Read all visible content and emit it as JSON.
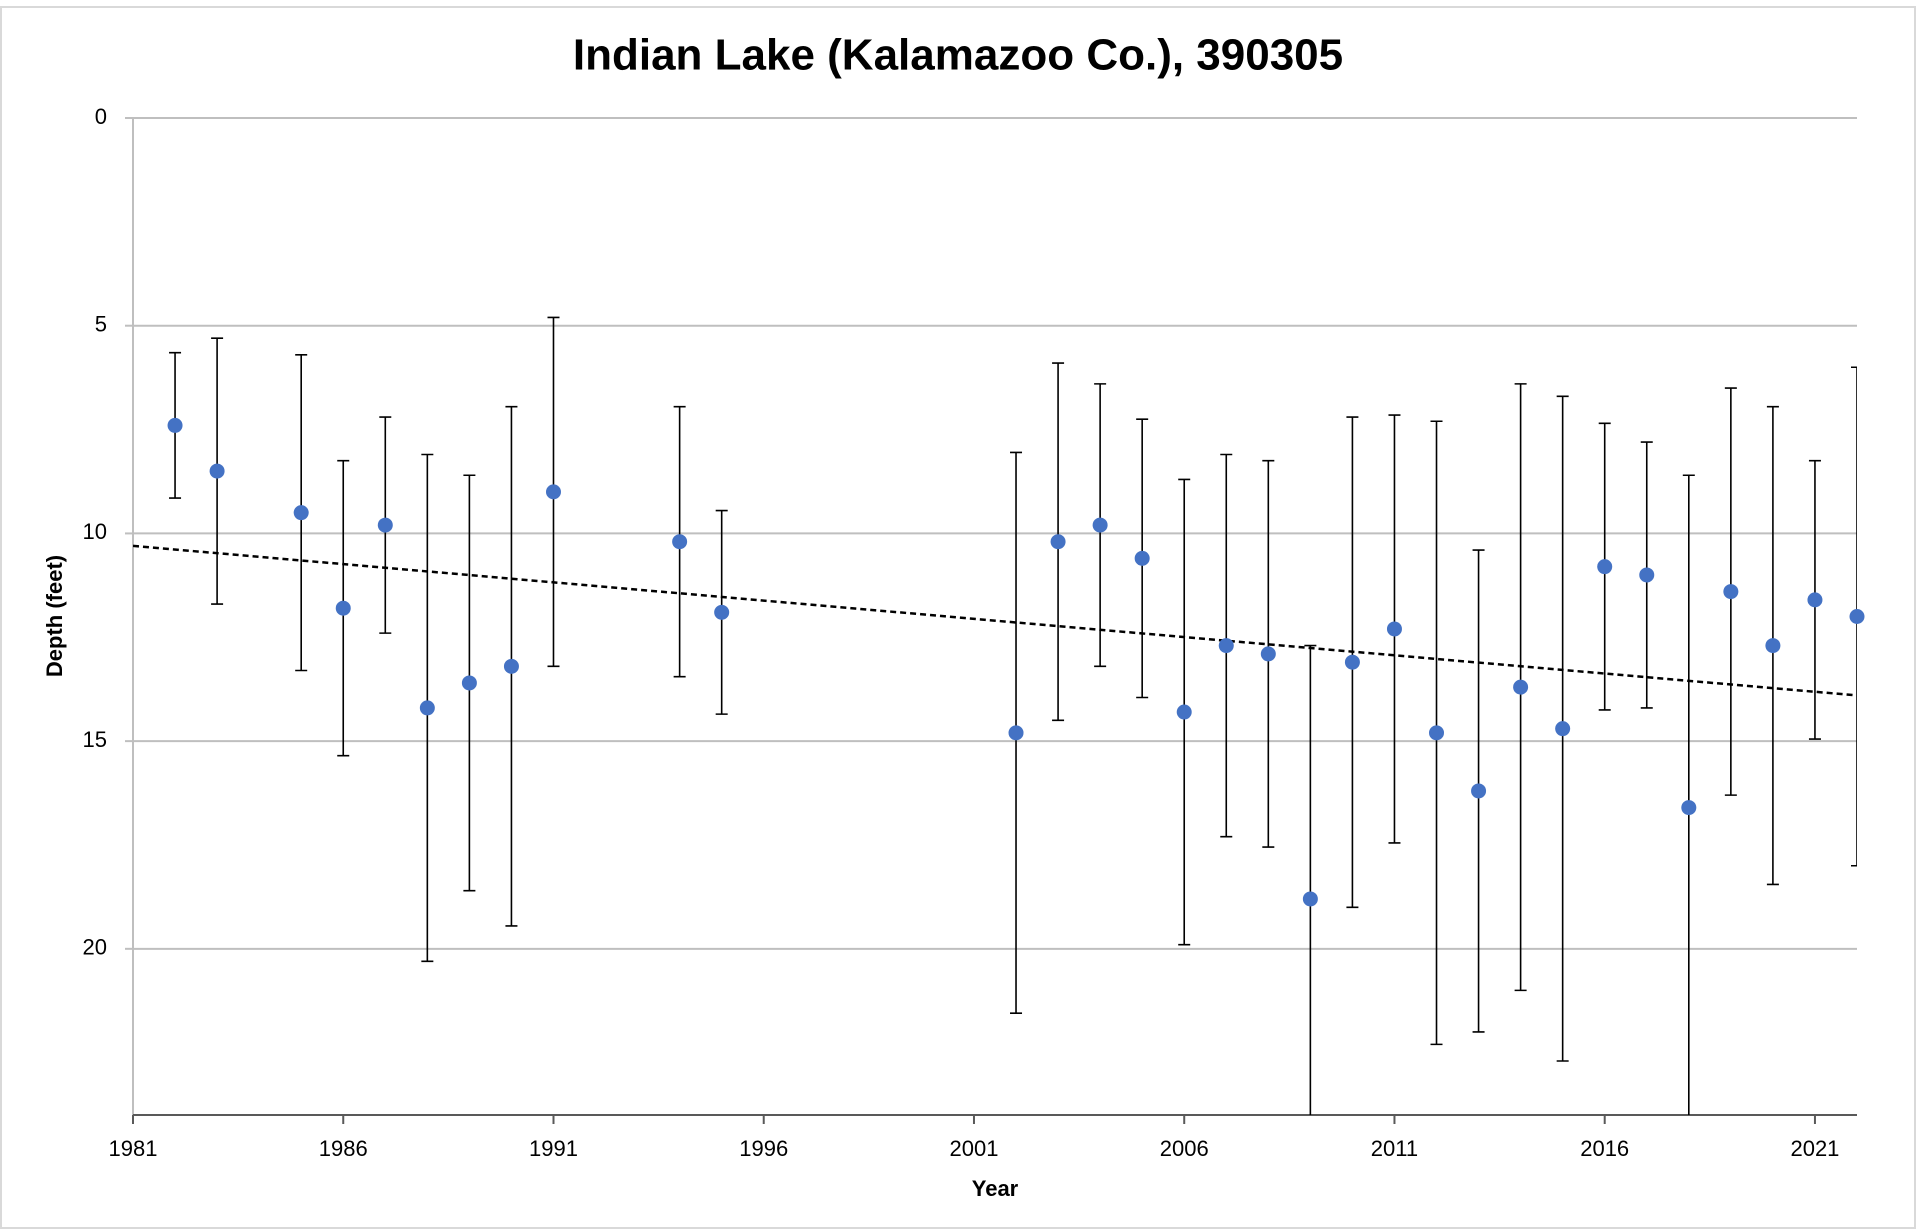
{
  "chart_data": {
    "type": "scatter",
    "title": "Indian Lake (Kalamazoo Co.), 390305",
    "x_label": "Year",
    "y_label": "Depth (feet)",
    "x": [
      1982,
      1983,
      1985,
      1986,
      1987,
      1988,
      1989,
      1990,
      1991,
      1994,
      1995,
      2002,
      2003,
      2004,
      2005,
      2006,
      2007,
      2008,
      2009,
      2010,
      2011,
      2012,
      2013,
      2014,
      2015,
      2016,
      2017,
      2018,
      2019,
      2020,
      2021,
      2022
    ],
    "values": [
      7.4,
      8.5,
      9.5,
      11.8,
      9.8,
      14.2,
      13.6,
      13.2,
      9.0,
      10.2,
      11.9,
      14.8,
      10.2,
      9.8,
      10.6,
      14.3,
      12.7,
      12.9,
      18.8,
      13.1,
      12.3,
      14.8,
      16.2,
      13.7,
      14.7,
      10.8,
      11.0,
      16.6,
      11.4,
      12.7,
      11.6,
      12.0
    ],
    "errors": [
      1.75,
      3.2,
      3.8,
      3.55,
      2.6,
      6.1,
      5.0,
      6.25,
      4.2,
      3.25,
      2.45,
      6.75,
      4.3,
      3.4,
      3.35,
      5.6,
      4.6,
      4.65,
      6.1,
      5.9,
      5.15,
      7.5,
      5.8,
      7.3,
      8.0,
      3.45,
      3.2,
      8.0,
      4.9,
      5.75,
      3.35,
      6.0
    ],
    "color": "#4472c4",
    "trendline": {
      "x": [
        1981,
        2022
      ],
      "y": [
        10.3,
        13.9
      ],
      "color": "#000000",
      "dashed": true
    },
    "xlim": [
      1981,
      2022
    ],
    "xticks": [
      1981,
      1986,
      1991,
      1996,
      2001,
      2006,
      2011,
      2016,
      2021
    ],
    "ylim": [
      0,
      24
    ],
    "yticks": [
      0,
      5,
      10,
      15,
      20
    ],
    "y_inverted": true,
    "grid": true
  }
}
